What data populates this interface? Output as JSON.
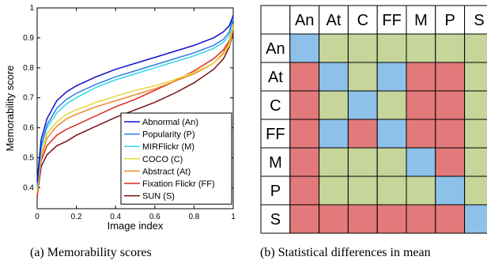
{
  "colors": {
    "significant": "#e2797a",
    "not_significant": "#c6d59a",
    "self": "#8dc1ea",
    "line": "#000000"
  },
  "captions": {
    "a": "(a)  Memorability scores",
    "b": "(b)  Statistical differences in mean"
  },
  "chart_data": [
    {
      "type": "line",
      "title": "",
      "xlabel": "Image index",
      "ylabel": "Memorability score",
      "xlim": [
        0,
        1
      ],
      "ylim": [
        0.33,
        1.0
      ],
      "xticks": [
        "0",
        "0.2",
        "0.4",
        "0.6",
        "0.8",
        "1"
      ],
      "yticks": [
        "0.4",
        "0.5",
        "0.6",
        "0.7",
        "0.8",
        "0.9",
        "1"
      ],
      "legend_position": "bottom-right",
      "x": [
        0,
        0.02,
        0.05,
        0.1,
        0.15,
        0.2,
        0.3,
        0.4,
        0.5,
        0.6,
        0.7,
        0.8,
        0.9,
        0.95,
        0.98,
        1.0
      ],
      "series": [
        {
          "name": "Abnormal (An)",
          "color": "#1010c8",
          "values": [
            0.42,
            0.56,
            0.63,
            0.69,
            0.72,
            0.74,
            0.77,
            0.795,
            0.815,
            0.835,
            0.855,
            0.875,
            0.9,
            0.92,
            0.94,
            0.975
          ]
        },
        {
          "name": "Popularity (P)",
          "color": "#2d7fe6",
          "values": [
            0.41,
            0.54,
            0.61,
            0.665,
            0.695,
            0.715,
            0.745,
            0.77,
            0.79,
            0.81,
            0.83,
            0.85,
            0.875,
            0.895,
            0.92,
            0.97
          ]
        },
        {
          "name": "MIRFlickr (M)",
          "color": "#30d8e6",
          "values": [
            0.4,
            0.53,
            0.6,
            0.65,
            0.68,
            0.7,
            0.735,
            0.76,
            0.78,
            0.8,
            0.82,
            0.84,
            0.865,
            0.885,
            0.91,
            0.965
          ]
        },
        {
          "name": "COCO (C)",
          "color": "#e6d83a",
          "values": [
            0.39,
            0.51,
            0.58,
            0.62,
            0.645,
            0.66,
            0.685,
            0.705,
            0.725,
            0.74,
            0.76,
            0.785,
            0.815,
            0.845,
            0.875,
            0.935
          ]
        },
        {
          "name": "Abstract (At)",
          "color": "#ec8a2a",
          "values": [
            0.38,
            0.5,
            0.565,
            0.605,
            0.63,
            0.645,
            0.67,
            0.69,
            0.71,
            0.73,
            0.755,
            0.78,
            0.815,
            0.85,
            0.885,
            0.945
          ]
        },
        {
          "name": "Fixation Flickr (FF)",
          "color": "#dc2a1a",
          "values": [
            0.37,
            0.49,
            0.54,
            0.575,
            0.595,
            0.61,
            0.64,
            0.67,
            0.695,
            0.725,
            0.755,
            0.79,
            0.83,
            0.86,
            0.89,
            0.94
          ]
        },
        {
          "name": "SUN (S)",
          "color": "#7a1010",
          "values": [
            0.37,
            0.47,
            0.51,
            0.54,
            0.555,
            0.575,
            0.605,
            0.635,
            0.66,
            0.685,
            0.715,
            0.75,
            0.795,
            0.83,
            0.87,
            0.92
          ]
        }
      ]
    },
    {
      "type": "table",
      "labels": [
        "An",
        "At",
        "C",
        "FF",
        "M",
        "P",
        "S"
      ],
      "cell_values": [
        [
          "self",
          "not_significant",
          "not_significant",
          "not_significant",
          "not_significant",
          "not_significant",
          "not_significant"
        ],
        [
          "significant",
          "self",
          "not_significant",
          "self",
          "significant",
          "significant",
          "not_significant"
        ],
        [
          "significant",
          "not_significant",
          "self",
          "not_significant",
          "significant",
          "significant",
          "not_significant"
        ],
        [
          "significant",
          "self",
          "significant",
          "self",
          "significant",
          "significant",
          "not_significant"
        ],
        [
          "significant",
          "not_significant",
          "not_significant",
          "not_significant",
          "self",
          "significant",
          "not_significant"
        ],
        [
          "significant",
          "not_significant",
          "not_significant",
          "not_significant",
          "not_significant",
          "self",
          "not_significant"
        ],
        [
          "significant",
          "significant",
          "significant",
          "significant",
          "significant",
          "significant",
          "self"
        ]
      ]
    }
  ]
}
